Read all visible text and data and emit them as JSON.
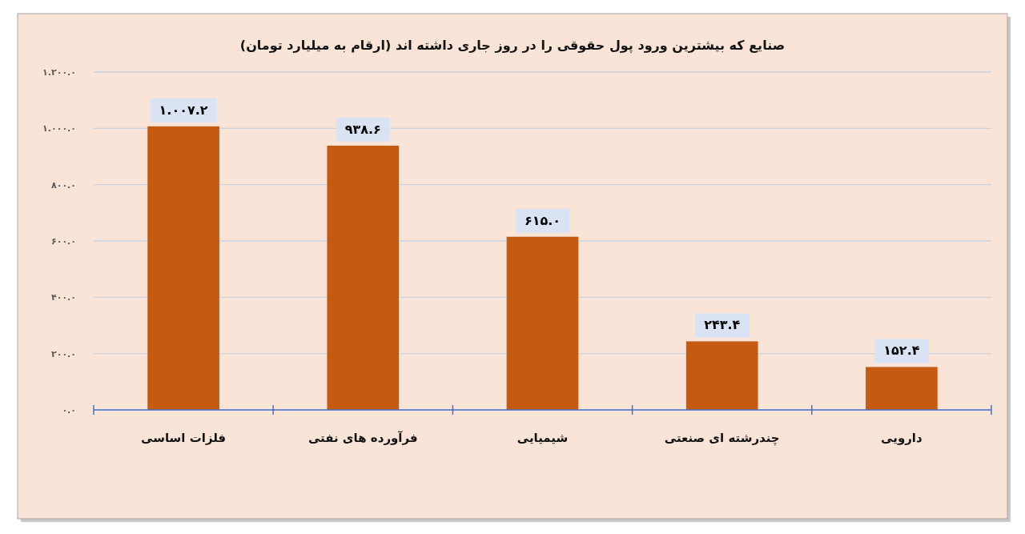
{
  "chart_data": {
    "type": "bar",
    "title": "صنایع که بیشترین ورود پول حقوقی را در روز جاری داشته اند (ارقام به میلیارد تومان)",
    "categories": [
      "فلزات اساسی",
      "فرآورده های نفتی",
      "شیمیایی",
      "چندرشته ای صنعتی",
      "دارویی"
    ],
    "values": [
      1007.2,
      938.6,
      615.0,
      243.4,
      152.4
    ],
    "value_labels": [
      "۱.۰۰۷.۲",
      "۹۳۸.۶",
      "۶۱۵.۰",
      "۲۴۳.۴",
      "۱۵۲.۴"
    ],
    "color": "#c55a11",
    "ylim": [
      0,
      1200
    ],
    "yticks": [
      {
        "value": 0,
        "label": "۰.۰"
      },
      {
        "value": 200,
        "label": "۲۰۰.۰"
      },
      {
        "value": 400,
        "label": "۴۰۰.۰"
      },
      {
        "value": 600,
        "label": "۶۰۰.۰"
      },
      {
        "value": 800,
        "label": "۸۰۰.۰"
      },
      {
        "value": 1000,
        "label": "۱.۰۰۰.۰"
      },
      {
        "value": 1200,
        "label": "۱.۲۰۰.۰"
      }
    ],
    "grid": "y"
  }
}
